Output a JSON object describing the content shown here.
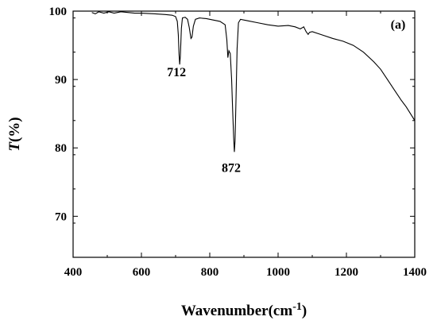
{
  "chart_data": {
    "type": "line",
    "panel_label": "(a)",
    "xlabel_main": "Wavenumber(cm",
    "xlabel_sup": "-1",
    "xlabel_close": ")",
    "ylabel_italic": "T",
    "ylabel_unit": "(%)",
    "xlim": [
      400,
      1400
    ],
    "ylim": [
      64,
      100
    ],
    "x_ticks": [
      400,
      600,
      800,
      1000,
      1200,
      1400
    ],
    "x_tick_labels": [
      "400",
      "600",
      "800",
      "1000",
      "1200",
      "1400"
    ],
    "y_ticks": [
      70,
      80,
      90,
      100
    ],
    "y_tick_labels": [
      "70",
      "80",
      "90",
      "100"
    ],
    "grid": false,
    "annotations": [
      {
        "text": "712",
        "x": 712,
        "y": 91.2
      },
      {
        "text": "872",
        "x": 872,
        "y": 77.2
      }
    ],
    "series": [
      {
        "points": [
          [
            455,
            99.8
          ],
          [
            465,
            99.6
          ],
          [
            475,
            99.9
          ],
          [
            490,
            99.7
          ],
          [
            505,
            99.9
          ],
          [
            520,
            99.7
          ],
          [
            540,
            99.9
          ],
          [
            560,
            99.8
          ],
          [
            580,
            99.7
          ],
          [
            600,
            99.7
          ],
          [
            640,
            99.6
          ],
          [
            670,
            99.5
          ],
          [
            690,
            99.4
          ],
          [
            700,
            99.2
          ],
          [
            705,
            98.5
          ],
          [
            708,
            96.5
          ],
          [
            710,
            93.8
          ],
          [
            712,
            92.2
          ],
          [
            714,
            93.5
          ],
          [
            717,
            97.5
          ],
          [
            720,
            99.0
          ],
          [
            728,
            99.1
          ],
          [
            735,
            98.8
          ],
          [
            740,
            97.6
          ],
          [
            745,
            96.0
          ],
          [
            748,
            96.2
          ],
          [
            752,
            97.8
          ],
          [
            758,
            98.8
          ],
          [
            770,
            99.0
          ],
          [
            790,
            98.9
          ],
          [
            810,
            98.7
          ],
          [
            830,
            98.5
          ],
          [
            845,
            98.0
          ],
          [
            850,
            95.8
          ],
          [
            853,
            93.2
          ],
          [
            856,
            94.2
          ],
          [
            860,
            93.8
          ],
          [
            864,
            90.0
          ],
          [
            867,
            85.5
          ],
          [
            870,
            81.5
          ],
          [
            872,
            79.4
          ],
          [
            874,
            81.0
          ],
          [
            877,
            87.5
          ],
          [
            880,
            94.5
          ],
          [
            884,
            98.3
          ],
          [
            890,
            98.8
          ],
          [
            910,
            98.6
          ],
          [
            940,
            98.3
          ],
          [
            970,
            98.0
          ],
          [
            1000,
            97.8
          ],
          [
            1030,
            97.9
          ],
          [
            1050,
            97.7
          ],
          [
            1065,
            97.4
          ],
          [
            1075,
            97.7
          ],
          [
            1082,
            97.0
          ],
          [
            1088,
            96.6
          ],
          [
            1092,
            96.9
          ],
          [
            1100,
            97.0
          ],
          [
            1130,
            96.5
          ],
          [
            1160,
            96.0
          ],
          [
            1190,
            95.6
          ],
          [
            1220,
            95.0
          ],
          [
            1250,
            94.0
          ],
          [
            1280,
            92.6
          ],
          [
            1300,
            91.5
          ],
          [
            1320,
            90.0
          ],
          [
            1340,
            88.5
          ],
          [
            1360,
            87.0
          ],
          [
            1375,
            86.0
          ],
          [
            1385,
            85.2
          ],
          [
            1395,
            84.4
          ],
          [
            1400,
            84.0
          ]
        ]
      }
    ]
  }
}
